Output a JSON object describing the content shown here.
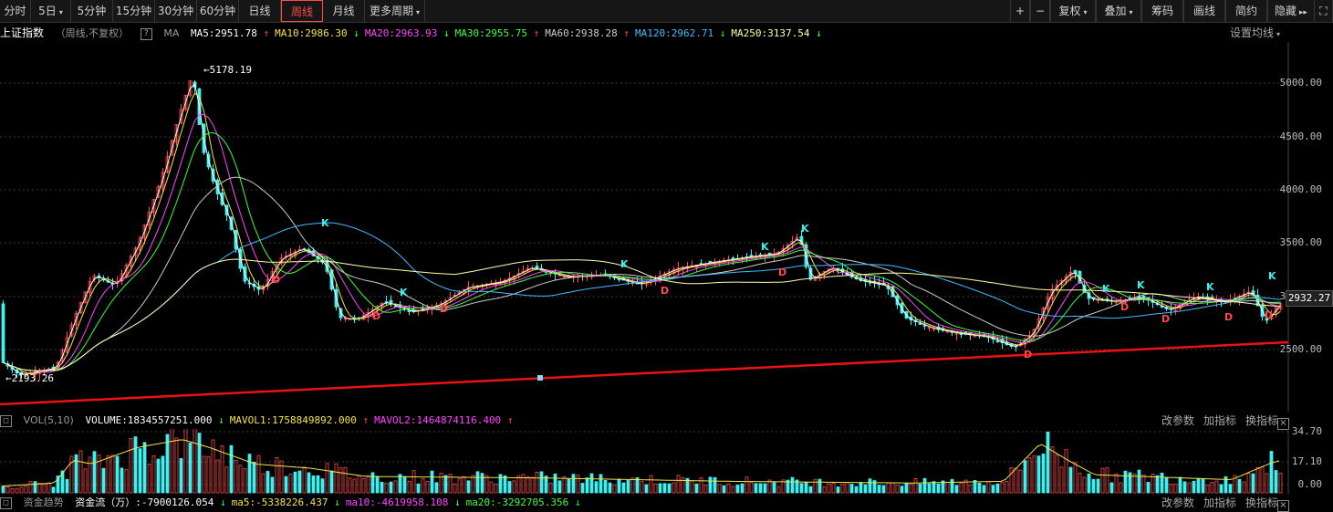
{
  "toolbar": {
    "periods": [
      "分时",
      "5日",
      "5分钟",
      "15分钟",
      "30分钟",
      "60分钟",
      "日线",
      "周线",
      "月线",
      "更多周期"
    ],
    "active": "周线",
    "right_buttons": [
      "+",
      "−",
      "复权",
      "叠加",
      "筹码",
      "画线",
      "简约",
      "隐藏"
    ]
  },
  "legend": {
    "index_name": "上证指数",
    "mode": "（周线,不复权）",
    "qmark": "?",
    "ma_label": "MA",
    "ma_items": [
      {
        "text": "MA5:2951.78",
        "arrow": "↑",
        "color": "#ffffff"
      },
      {
        "text": "MA10:2986.30",
        "arrow": "↓",
        "color": "#f5e34a"
      },
      {
        "text": "MA20:2963.93",
        "arrow": "↓",
        "color": "#ff44ff"
      },
      {
        "text": "MA30:2955.75",
        "arrow": "↑",
        "color": "#3cff3c"
      },
      {
        "text": "MA60:2938.28",
        "arrow": "↑",
        "color": "#cccccc"
      },
      {
        "text": "MA120:2962.71",
        "arrow": "↓",
        "color": "#44bbff"
      },
      {
        "text": "MA250:3137.54",
        "arrow": "↓",
        "color": "#ffffaa"
      }
    ],
    "settings": "设置均线"
  },
  "price_axis": {
    "labels": [
      "5000.00",
      "4500.00",
      "4000.00",
      "3500.00",
      "3000.00",
      "2500.00"
    ],
    "current": "2932.27"
  },
  "annotations": {
    "high": "5178.19",
    "low": "2193.26"
  },
  "volume_panel": {
    "label": "VOL(5,10)",
    "items": [
      {
        "text": "VOLUME:1834557251.000",
        "arrow": "↓",
        "color": "#ffffff"
      },
      {
        "text": "MAVOL1:1758849892.000",
        "arrow": "↑",
        "color": "#f5e34a"
      },
      {
        "text": "MAVOL2:1464874116.400",
        "arrow": "↑",
        "color": "#ff44ff"
      }
    ],
    "links": [
      "改参数",
      "加指标",
      "换指标"
    ],
    "axis": [
      "34.70",
      "17.10",
      "0.00"
    ]
  },
  "fund_panel": {
    "label": "资金趋势",
    "items": [
      {
        "text": "资金流（万）:-7900126.054",
        "arrow": "↓",
        "color": "#ffffff"
      },
      {
        "text": "ma5:-5338226.437",
        "arrow": "↓",
        "color": "#f5e34a"
      },
      {
        "text": "ma10:-4619958.108",
        "arrow": "↓",
        "color": "#ff44ff"
      },
      {
        "text": "ma20:-3292705.356",
        "arrow": "↓",
        "color": "#3cff3c"
      }
    ],
    "links": [
      "改参数",
      "加指标",
      "换指标"
    ]
  },
  "colors": {
    "up": "#ff4a4a",
    "down": "#3ff0f0",
    "trend": "#ee1111",
    "background": "#000000"
  }
}
